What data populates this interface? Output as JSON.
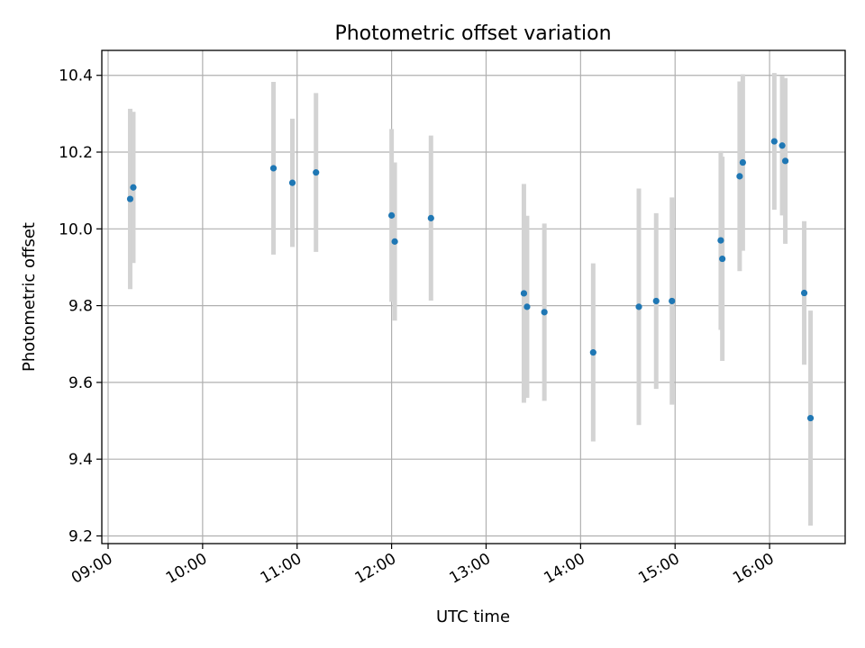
{
  "chart_data": {
    "type": "scatter",
    "title": "Photometric offset variation",
    "xlabel": "UTC time",
    "ylabel": "Photometric offset",
    "x_ticks": [
      "09:00",
      "10:00",
      "11:00",
      "12:00",
      "13:00",
      "14:00",
      "15:00",
      "16:00"
    ],
    "y_ticks": [
      "9.2",
      "9.4",
      "9.6",
      "9.8",
      "10.0",
      "10.2",
      "10.4"
    ],
    "xlim": [
      "08:56",
      "16:48"
    ],
    "ylim": [
      9.18,
      10.465
    ],
    "grid": true,
    "colors": {
      "points": "#1f77b4",
      "error_bars": "#d3d3d3",
      "grid": "#b0b0b0"
    },
    "points": [
      {
        "x": "09:14",
        "y": 10.078,
        "err": 0.235
      },
      {
        "x": "09:16",
        "y": 10.108,
        "err": 0.197
      },
      {
        "x": "10:45",
        "y": 10.158,
        "err": 0.225
      },
      {
        "x": "10:57",
        "y": 10.12,
        "err": 0.167
      },
      {
        "x": "11:12",
        "y": 10.147,
        "err": 0.207
      },
      {
        "x": "12:00",
        "y": 10.035,
        "err": 0.225
      },
      {
        "x": "12:02",
        "y": 9.967,
        "err": 0.206
      },
      {
        "x": "12:25",
        "y": 10.028,
        "err": 0.215
      },
      {
        "x": "13:24",
        "y": 9.832,
        "err": 0.285
      },
      {
        "x": "13:26",
        "y": 9.797,
        "err": 0.237
      },
      {
        "x": "13:37",
        "y": 9.783,
        "err": 0.231
      },
      {
        "x": "14:08",
        "y": 9.678,
        "err": 0.232
      },
      {
        "x": "14:37",
        "y": 9.797,
        "err": 0.308
      },
      {
        "x": "14:48",
        "y": 9.812,
        "err": 0.229
      },
      {
        "x": "14:58",
        "y": 9.812,
        "err": 0.27
      },
      {
        "x": "15:29",
        "y": 9.97,
        "err": 0.233
      },
      {
        "x": "15:30",
        "y": 9.922,
        "err": 0.266
      },
      {
        "x": "15:41",
        "y": 10.137,
        "err": 0.247
      },
      {
        "x": "15:43",
        "y": 10.173,
        "err": 0.23
      },
      {
        "x": "16:03",
        "y": 10.228,
        "err": 0.178
      },
      {
        "x": "16:08",
        "y": 10.217,
        "err": 0.182
      },
      {
        "x": "16:10",
        "y": 10.177,
        "err": 0.216
      },
      {
        "x": "16:22",
        "y": 9.833,
        "err": 0.187
      },
      {
        "x": "16:26",
        "y": 9.507,
        "err": 0.28
      }
    ]
  }
}
